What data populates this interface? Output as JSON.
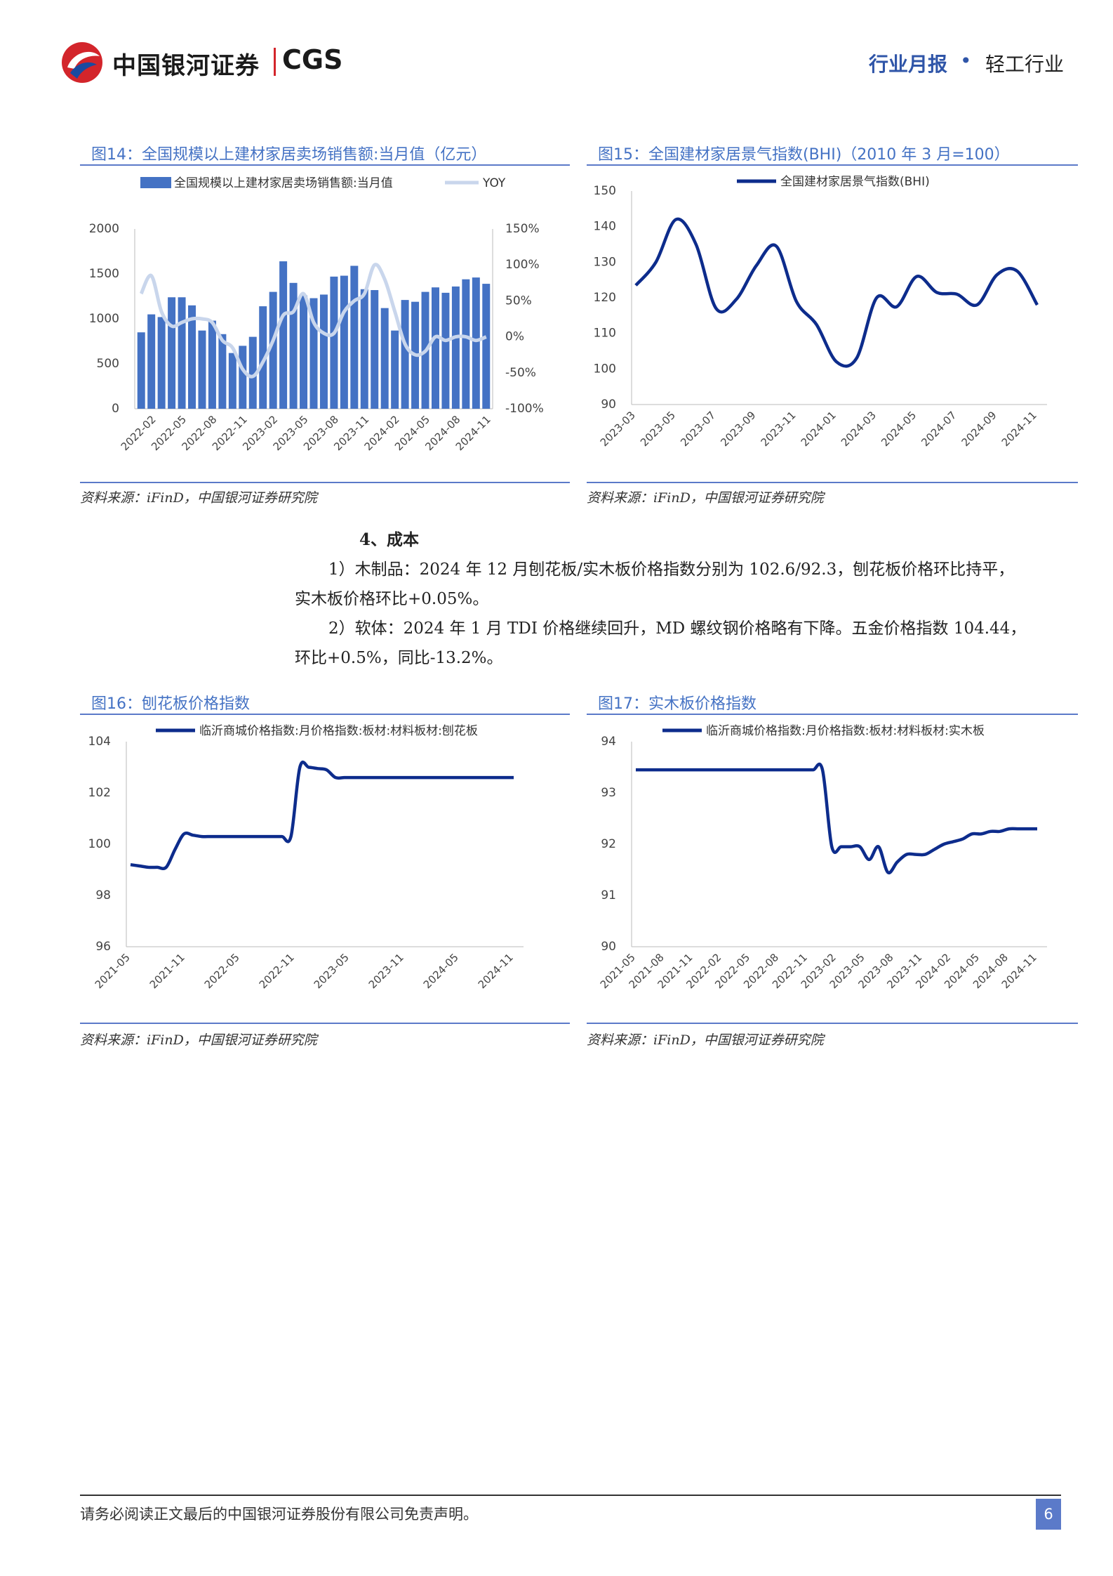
{
  "header": {
    "brand_cn": "中国银河证券",
    "brand_en": "CGS",
    "report_type": "行业月报",
    "dot": "•",
    "industry": "轻工行业"
  },
  "fig14": {
    "title": "图14：全国规模以上建材家居卖场销售额:当月值（亿元）",
    "source": "资料来源：iFinD，中国银河证券研究院",
    "chart_data": {
      "type": "bar",
      "legend": [
        "全国规模以上建材家居卖场销售额:当月值",
        "YOY"
      ],
      "x_ticks": [
        "2022-02",
        "2022-05",
        "2022-08",
        "2022-11",
        "2023-02",
        "2023-05",
        "2023-08",
        "2023-11",
        "2024-02",
        "2024-05",
        "2024-08",
        "2024-11"
      ],
      "series": [
        {
          "name": "全国规模以上建材家居卖场销售额:当月值",
          "axis": "left",
          "values": [
            850,
            1050,
            1020,
            1240,
            1240,
            1150,
            870,
            980,
            830,
            620,
            700,
            800,
            1140,
            1300,
            1640,
            1400,
            1260,
            1230,
            1270,
            1470,
            1480,
            1590,
            1330,
            1320,
            1120,
            870,
            1210,
            1190,
            1300,
            1350,
            1290,
            1360,
            1440,
            1460,
            1390
          ]
        },
        {
          "name": "YOY",
          "axis": "right",
          "values": [
            60,
            85,
            35,
            15,
            20,
            25,
            25,
            20,
            -5,
            -15,
            -45,
            -55,
            -35,
            -5,
            30,
            35,
            60,
            20,
            5,
            5,
            35,
            50,
            60,
            100,
            80,
            35,
            -10,
            -25,
            -20,
            0,
            -5,
            0,
            0,
            -5,
            0
          ]
        }
      ],
      "y_left": {
        "range": [
          0,
          2000
        ],
        "ticks": [
          "0",
          "500",
          "1000",
          "1500",
          "2000"
        ]
      },
      "y_right": {
        "range": [
          -100,
          150
        ],
        "ticks": [
          "-100%",
          "-50%",
          "0%",
          "50%",
          "100%",
          "150%"
        ]
      },
      "colors": {
        "bar": "#4472c4",
        "line": "#c9d6ec"
      }
    }
  },
  "fig15": {
    "title": "图15：全国建材家居景气指数(BHI)（2010 年 3 月=100）",
    "source": "资料来源：iFinD，中国银河证券研究院",
    "chart_data": {
      "type": "line",
      "legend": [
        "全国建材家居景气指数(BHI)"
      ],
      "x_ticks": [
        "2023-03",
        "2023-05",
        "2023-07",
        "2023-09",
        "2023-11",
        "2024-01",
        "2024-03",
        "2024-05",
        "2024-07",
        "2024-09",
        "2024-11"
      ],
      "series": [
        {
          "name": "全国建材家居景气指数(BHI)",
          "values": [
            123.5,
            130,
            142,
            135,
            117,
            119.5,
            129,
            134.5,
            119,
            112.5,
            102,
            103,
            120,
            117.5,
            126,
            121.5,
            121,
            118,
            126.5,
            127.5,
            118
          ]
        }
      ],
      "ylim": [
        90,
        150
      ],
      "y_ticks": [
        "90",
        "100",
        "110",
        "120",
        "130",
        "140",
        "150"
      ],
      "color": "#0d2c8c"
    }
  },
  "section": {
    "heading": "4、成本",
    "p1_line1": "1）木制品：2024 年 12 月刨花板/实木板价格指数分别为 102.6/92.3，刨花板价格环比持平，",
    "p1_line2": "实木板价格环比+0.05%。",
    "p2_line1": "2）软体：2024 年 1 月 TDI 价格继续回升，MD 螺纹钢价格略有下降。五金价格指数 104.44，",
    "p2_line2": "环比+0.5%，同比-13.2%。"
  },
  "fig16": {
    "title": "图16：刨花板价格指数",
    "source": "资料来源：iFinD，中国银河证券研究院",
    "chart_data": {
      "type": "line",
      "legend": [
        "临沂商城价格指数:月价格指数:板材:材料板材:刨花板"
      ],
      "x_ticks": [
        "2021-05",
        "2021-11",
        "2022-05",
        "2022-11",
        "2023-05",
        "2023-11",
        "2024-05",
        "2024-11"
      ],
      "series": [
        {
          "name": "临沂商城价格指数:月价格指数:板材:材料板材:刨花板",
          "values": [
            99.2,
            99.15,
            99.1,
            99.1,
            99.1,
            99.8,
            100.4,
            100.35,
            100.3,
            100.3,
            100.3,
            100.3,
            100.3,
            100.3,
            100.3,
            100.3,
            100.3,
            100.3,
            100.3,
            103.0,
            103.0,
            102.95,
            102.9,
            102.6,
            102.6,
            102.6,
            102.6,
            102.6,
            102.6,
            102.6,
            102.6,
            102.6,
            102.6,
            102.6,
            102.6,
            102.6,
            102.6,
            102.6,
            102.6,
            102.6,
            102.6,
            102.6,
            102.6,
            102.6
          ]
        }
      ],
      "ylim": [
        96,
        104
      ],
      "y_ticks": [
        "96",
        "98",
        "100",
        "102",
        "104"
      ],
      "color": "#0d2c8c"
    }
  },
  "fig17": {
    "title": "图17：实木板价格指数",
    "source": "资料来源：iFinD，中国银河证券研究院",
    "chart_data": {
      "type": "line",
      "legend": [
        "临沂商城价格指数:月价格指数:板材:材料板材:实木板"
      ],
      "x_ticks": [
        "2021-05",
        "2021-08",
        "2021-11",
        "2022-02",
        "2022-05",
        "2022-08",
        "2022-11",
        "2023-02",
        "2023-05",
        "2023-08",
        "2023-11",
        "2024-02",
        "2024-05",
        "2024-08",
        "2024-11"
      ],
      "series": [
        {
          "name": "临沂商城价格指数:月价格指数:板材:材料板材:实木板",
          "values": [
            93.45,
            93.45,
            93.45,
            93.45,
            93.45,
            93.45,
            93.45,
            93.45,
            93.45,
            93.45,
            93.45,
            93.45,
            93.45,
            93.45,
            93.45,
            93.45,
            93.45,
            93.45,
            93.45,
            93.45,
            93.45,
            91.95,
            91.95,
            91.95,
            91.95,
            91.7,
            91.95,
            91.45,
            91.65,
            91.8,
            91.8,
            91.8,
            91.9,
            92.0,
            92.05,
            92.1,
            92.2,
            92.2,
            92.25,
            92.25,
            92.3,
            92.3,
            92.3,
            92.3
          ]
        }
      ],
      "ylim": [
        90,
        94
      ],
      "y_ticks": [
        "90",
        "91",
        "92",
        "93",
        "94"
      ],
      "color": "#0d2c8c"
    }
  },
  "footer": {
    "disclaimer": "请务必阅读正文最后的中国银河证券股份有限公司免责声明。",
    "page_number": "6"
  }
}
